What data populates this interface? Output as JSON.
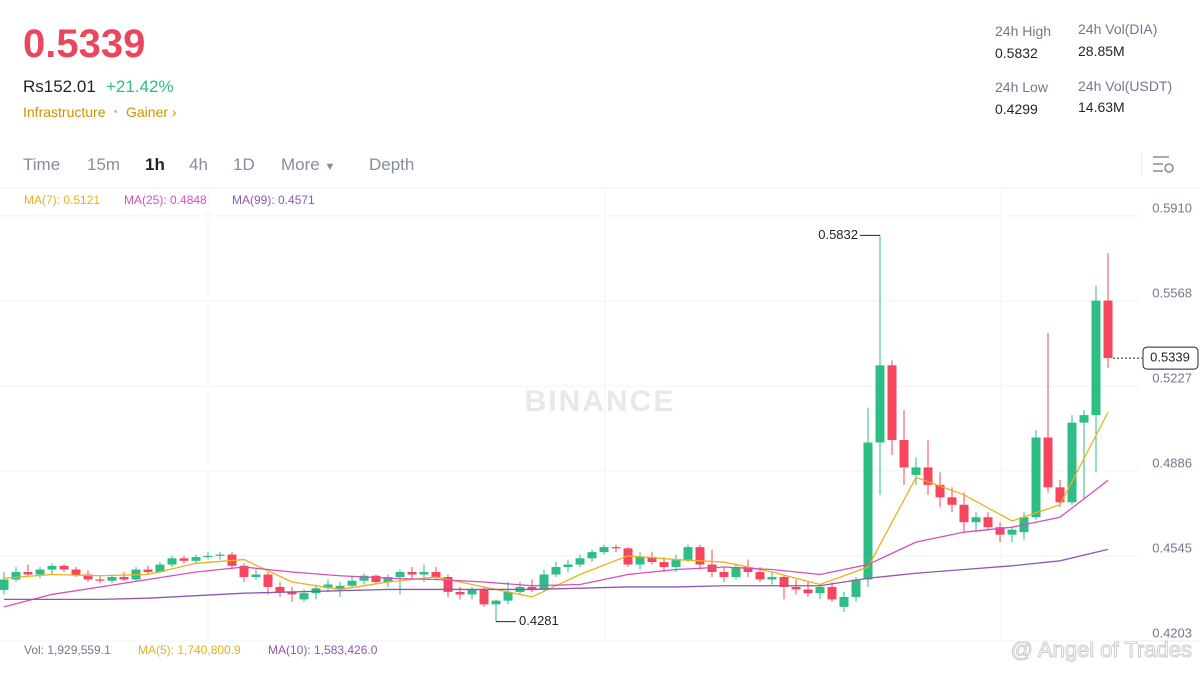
{
  "header": {
    "price": "0.5339",
    "fiat": "Rs152.01",
    "change": "+21.42%",
    "tags": [
      "Infrastructure",
      "Gainer"
    ]
  },
  "stats": [
    {
      "label": "24h High",
      "value": "0.5832"
    },
    {
      "label": "24h Vol(DIA)",
      "value": "28.85M"
    },
    {
      "label": "24h Low",
      "value": "0.4299"
    },
    {
      "label": "24h Vol(USDT)",
      "value": "14.63M"
    }
  ],
  "tabs": [
    "Time",
    "15m",
    "1h",
    "4h",
    "1D",
    "More",
    "Depth"
  ],
  "ma_legend": [
    "MA(7): 0.5121",
    "MA(25): 0.4848",
    "MA(99): 0.4571"
  ],
  "volume_legend": [
    "Vol: 1,929,559.1",
    "MA(5): 1,740,800.9",
    "MA(10): 1,583,426.0"
  ],
  "watermark": "BINANCE",
  "credit": "@ Angel of Trades",
  "chart_data": {
    "type": "candlestick",
    "up_color": "#2ebd85",
    "down_color": "#f6465d",
    "open": [
      0.4408,
      0.445,
      0.448,
      0.447,
      0.449,
      0.4505,
      0.449,
      0.447,
      0.445,
      0.4445,
      0.446,
      0.445,
      0.449,
      0.448,
      0.451,
      0.4535,
      0.4525,
      0.454,
      0.4545,
      0.455,
      0.4505,
      0.446,
      0.447,
      0.442,
      0.44,
      0.437,
      0.4395,
      0.4415,
      0.441,
      0.4425,
      0.4445,
      0.4465,
      0.444,
      0.446,
      0.448,
      0.447,
      0.448,
      0.446,
      0.44,
      0.439,
      0.441,
      0.435,
      0.4365,
      0.44,
      0.442,
      0.441,
      0.447,
      0.45,
      0.451,
      0.4535,
      0.456,
      0.458,
      0.4575,
      0.451,
      0.454,
      0.452,
      0.45,
      0.453,
      0.458,
      0.451,
      0.448,
      0.446,
      0.45,
      0.448,
      0.445,
      0.446,
      0.442,
      0.441,
      0.4395,
      0.442,
      0.434,
      0.438,
      0.445,
      0.5,
      0.531,
      0.501,
      0.487,
      0.49,
      0.483,
      0.478,
      0.475,
      0.468,
      0.47,
      0.466,
      0.463,
      0.464,
      0.47,
      0.502,
      0.482,
      0.476,
      0.508,
      0.511,
      0.557
    ],
    "high": [
      0.448,
      0.45,
      0.451,
      0.45,
      0.4515,
      0.451,
      0.45,
      0.4485,
      0.4465,
      0.447,
      0.448,
      0.45,
      0.4505,
      0.452,
      0.4545,
      0.4545,
      0.455,
      0.456,
      0.456,
      0.456,
      0.4515,
      0.449,
      0.448,
      0.444,
      0.442,
      0.441,
      0.443,
      0.445,
      0.444,
      0.446,
      0.4475,
      0.447,
      0.447,
      0.449,
      0.45,
      0.451,
      0.45,
      0.447,
      0.442,
      0.442,
      0.442,
      0.437,
      0.444,
      0.444,
      0.445,
      0.449,
      0.452,
      0.453,
      0.455,
      0.457,
      0.459,
      0.459,
      0.458,
      0.456,
      0.456,
      0.454,
      0.455,
      0.459,
      0.459,
      0.457,
      0.45,
      0.451,
      0.453,
      0.45,
      0.448,
      0.447,
      0.445,
      0.444,
      0.443,
      0.444,
      0.44,
      0.446,
      0.514,
      0.5832,
      0.533,
      0.513,
      0.494,
      0.501,
      0.488,
      0.482,
      0.48,
      0.472,
      0.472,
      0.468,
      0.466,
      0.472,
      0.505,
      0.544,
      0.485,
      0.511,
      0.513,
      0.563,
      0.576
    ],
    "low": [
      0.439,
      0.444,
      0.446,
      0.4455,
      0.447,
      0.448,
      0.446,
      0.444,
      0.4435,
      0.4435,
      0.4445,
      0.4445,
      0.447,
      0.4475,
      0.45,
      0.4515,
      0.4515,
      0.453,
      0.453,
      0.449,
      0.444,
      0.445,
      0.439,
      0.438,
      0.436,
      0.436,
      0.437,
      0.44,
      0.438,
      0.4415,
      0.443,
      0.443,
      0.442,
      0.439,
      0.445,
      0.444,
      0.445,
      0.438,
      0.437,
      0.437,
      0.434,
      0.4281,
      0.435,
      0.439,
      0.44,
      0.44,
      0.446,
      0.448,
      0.45,
      0.452,
      0.455,
      0.456,
      0.45,
      0.449,
      0.451,
      0.448,
      0.448,
      0.452,
      0.449,
      0.446,
      0.444,
      0.445,
      0.446,
      0.444,
      0.443,
      0.437,
      0.439,
      0.438,
      0.437,
      0.436,
      0.432,
      0.436,
      0.442,
      0.479,
      0.495,
      0.483,
      0.483,
      0.479,
      0.474,
      0.472,
      0.464,
      0.464,
      0.465,
      0.46,
      0.46,
      0.461,
      0.469,
      0.48,
      0.474,
      0.475,
      0.477,
      0.488,
      0.53
    ],
    "close": [
      0.445,
      0.448,
      0.447,
      0.449,
      0.4505,
      0.449,
      0.447,
      0.445,
      0.4445,
      0.446,
      0.445,
      0.449,
      0.448,
      0.451,
      0.4535,
      0.4525,
      0.454,
      0.4545,
      0.455,
      0.4505,
      0.446,
      0.447,
      0.442,
      0.44,
      0.439,
      0.4395,
      0.4415,
      0.443,
      0.4425,
      0.4445,
      0.4465,
      0.444,
      0.446,
      0.448,
      0.447,
      0.448,
      0.446,
      0.44,
      0.439,
      0.441,
      0.435,
      0.4365,
      0.44,
      0.442,
      0.441,
      0.447,
      0.45,
      0.451,
      0.4535,
      0.456,
      0.458,
      0.4575,
      0.451,
      0.454,
      0.452,
      0.45,
      0.453,
      0.458,
      0.451,
      0.448,
      0.446,
      0.45,
      0.448,
      0.445,
      0.446,
      0.442,
      0.441,
      0.4395,
      0.442,
      0.437,
      0.438,
      0.445,
      0.5,
      0.531,
      0.501,
      0.49,
      0.49,
      0.483,
      0.478,
      0.475,
      0.468,
      0.47,
      0.466,
      0.463,
      0.465,
      0.47,
      0.502,
      0.482,
      0.476,
      0.508,
      0.511,
      0.557,
      0.5339
    ],
    "ma_x": [
      0,
      4,
      8,
      12,
      16,
      20,
      24,
      28,
      32,
      36,
      40,
      44,
      48,
      52,
      56,
      60,
      64,
      68,
      72,
      76,
      80,
      84,
      88,
      92
    ],
    "series": [
      {
        "color": "#e7b21d",
        "values": [
          0.4455,
          0.447,
          0.4465,
          0.447,
          0.4515,
          0.453,
          0.444,
          0.441,
          0.444,
          0.446,
          0.442,
          0.438,
          0.447,
          0.4545,
          0.453,
          0.452,
          0.448,
          0.443,
          0.45,
          0.486,
          0.479,
          0.4685,
          0.475,
          0.5121
        ]
      },
      {
        "color": "#d64fbd",
        "values": [
          0.434,
          0.439,
          0.442,
          0.445,
          0.448,
          0.45,
          0.448,
          0.4465,
          0.4455,
          0.445,
          0.444,
          0.4425,
          0.443,
          0.447,
          0.449,
          0.45,
          0.449,
          0.447,
          0.451,
          0.46,
          0.464,
          0.466,
          0.47,
          0.4848
        ]
      },
      {
        "color": "#8e58b0",
        "values": [
          0.437,
          0.437,
          0.437,
          0.4375,
          0.4385,
          0.4395,
          0.44,
          0.4405,
          0.441,
          0.441,
          0.441,
          0.441,
          0.4415,
          0.442,
          0.442,
          0.4425,
          0.4425,
          0.4425,
          0.4455,
          0.4475,
          0.449,
          0.4505,
          0.4525,
          0.4571
        ]
      }
    ],
    "ylim": [
      0.4203,
      0.6014
    ],
    "yticks": [
      {
        "value": 0.591,
        "label": "0.5910"
      },
      0.5568,
      0.5227,
      0.4886,
      0.4545,
      0.4203
    ],
    "grid": true,
    "last_price": 0.5339,
    "high_mark": 0.5832,
    "low_mark": 0.4281
  }
}
